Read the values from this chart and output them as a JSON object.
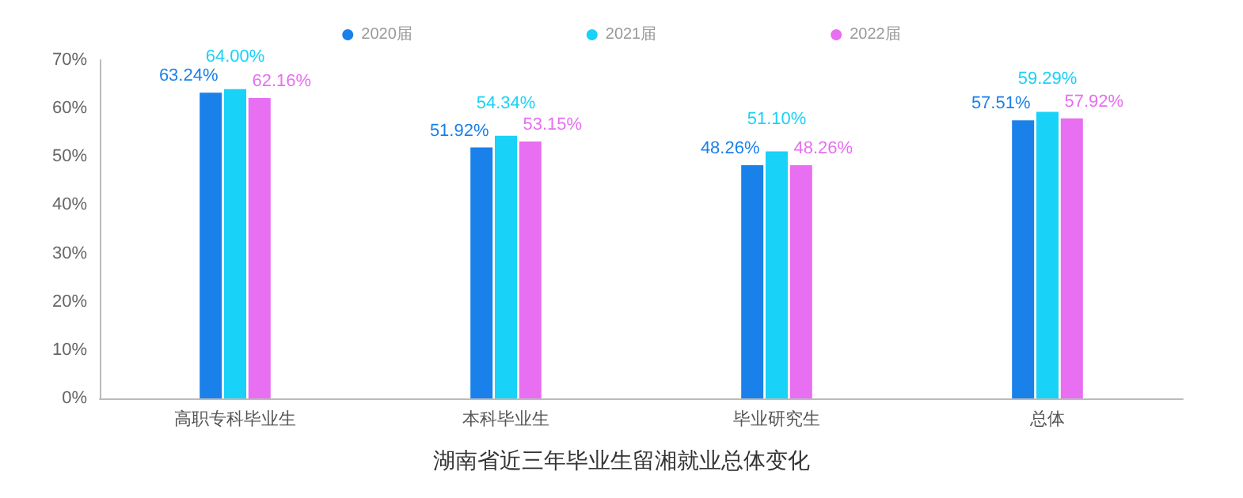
{
  "chart_data": {
    "type": "bar",
    "title": "湖南省近三年毕业生留湘就业总体变化",
    "categories": [
      "高职专科毕业生",
      "本科毕业生",
      "毕业研究生",
      "总体"
    ],
    "series": [
      {
        "name": "2020届",
        "color": "#1a80ea",
        "values": [
          63.24,
          51.92,
          48.26,
          57.51
        ],
        "value_labels": [
          "63.24%",
          "51.92%",
          "48.26%",
          "57.51%"
        ]
      },
      {
        "name": "2021届",
        "color": "#19d2f7",
        "values": [
          64.0,
          54.34,
          51.1,
          59.29
        ],
        "value_labels": [
          "64.00%",
          "54.34%",
          "51.10%",
          "59.29%"
        ]
      },
      {
        "name": "2022届",
        "color": "#e86ef2",
        "values": [
          62.16,
          53.15,
          48.26,
          57.92
        ],
        "value_labels": [
          "62.16%",
          "53.15%",
          "48.26%",
          "57.92%"
        ]
      }
    ],
    "ylim": [
      0,
      70
    ],
    "yticks": [
      {
        "value": 0,
        "label": "0%"
      },
      {
        "value": 10,
        "label": "10%"
      },
      {
        "value": 20,
        "label": "20%"
      },
      {
        "value": 30,
        "label": "30%"
      },
      {
        "value": 40,
        "label": "40%"
      },
      {
        "value": 50,
        "label": "50%"
      },
      {
        "value": 60,
        "label": "60%"
      },
      {
        "value": 70,
        "label": "70%"
      }
    ],
    "grid": false,
    "legend": "top"
  }
}
